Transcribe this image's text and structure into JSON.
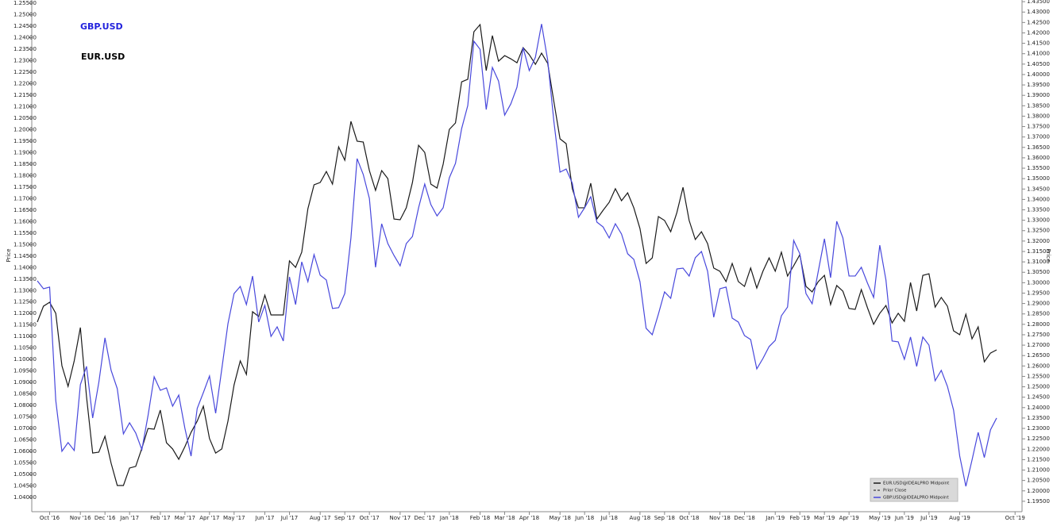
{
  "chart_data": {
    "type": "line",
    "y_label": "Price",
    "y2_label": "Price",
    "annotations": [
      {
        "text": "GBP.USD",
        "color": "#2222dd"
      },
      {
        "text": "EUR.USD",
        "color": "#000000"
      }
    ],
    "legend": {
      "position": "lower right",
      "extra_entries": [
        "Prior Close"
      ]
    },
    "grid": false,
    "categories": [
      null,
      null,
      "Oct '16",
      null,
      null,
      null,
      null,
      "Nov '16",
      null,
      null,
      null,
      "Dec '16",
      null,
      null,
      null,
      "Jan '17",
      null,
      null,
      null,
      null,
      "Feb '17",
      null,
      null,
      null,
      "Mar '17",
      null,
      null,
      null,
      "Apr '17",
      null,
      null,
      null,
      "May '17",
      null,
      null,
      null,
      null,
      "Jun '17",
      null,
      null,
      null,
      "Jul '17",
      null,
      null,
      null,
      null,
      "Aug '17",
      null,
      null,
      null,
      "Sep '17",
      null,
      null,
      null,
      "Oct '17",
      null,
      null,
      null,
      null,
      "Nov '17",
      null,
      null,
      null,
      "Dec '17",
      null,
      null,
      null,
      "Jan '18",
      null,
      null,
      null,
      null,
      "Feb '18",
      null,
      null,
      null,
      "Mar '18",
      null,
      null,
      null,
      "Apr '18",
      null,
      null,
      null,
      null,
      "May '18",
      null,
      null,
      null,
      "Jun '18",
      null,
      null,
      null,
      "Jul '18",
      null,
      null,
      null,
      null,
      "Aug '18",
      null,
      null,
      null,
      "Sep '18",
      null,
      null,
      null,
      "Oct '18",
      null,
      null,
      null,
      null,
      "Nov '18",
      null,
      null,
      null,
      "Dec '18",
      null,
      null,
      null,
      null,
      "Jan '19",
      null,
      null,
      null,
      "Feb '19",
      null,
      null,
      null,
      "Mar '19",
      null,
      null,
      null,
      "Apr '19",
      null,
      null,
      null,
      null,
      "May '19",
      null,
      null,
      null,
      "Jun '19",
      null,
      null,
      null,
      "Jul '19",
      null,
      null,
      null,
      null,
      "Aug '19",
      null,
      null,
      null,
      null,
      null,
      null,
      null,
      null,
      "Oct '19"
    ],
    "series": [
      {
        "name": "EUR.USD@IDEALPRO Midpoint",
        "color": "#1a1a1a",
        "axis": "y",
        "values": [
          1.1163,
          1.1232,
          1.1249,
          1.1201,
          1.0973,
          1.0883,
          1.0994,
          1.1139,
          1.0838,
          1.0593,
          1.0597,
          1.0666,
          1.0549,
          1.0452,
          1.0452,
          1.0528,
          1.0535,
          1.0614,
          1.07,
          1.0697,
          1.078,
          1.0638,
          1.0611,
          1.0566,
          1.0621,
          1.0683,
          1.0732,
          1.0797,
          1.0656,
          1.0593,
          1.0611,
          1.0732,
          1.089,
          1.0994,
          1.0935,
          1.1208,
          1.1187,
          1.128,
          1.1194,
          1.1194,
          1.1194,
          1.1429,
          1.1401,
          1.1467,
          1.1656,
          1.176,
          1.177,
          1.1818,
          1.1763,
          1.1925,
          1.1867,
          1.2036,
          1.195,
          1.1946,
          1.1822,
          1.1736,
          1.1822,
          1.1787,
          1.1611,
          1.1608,
          1.166,
          1.177,
          1.1932,
          1.1901,
          1.1763,
          1.1746,
          1.185,
          1.2001,
          1.2029,
          1.2208,
          1.2219,
          1.2426,
          1.2457,
          1.2257,
          1.2409,
          1.2298,
          1.2322,
          1.2308,
          1.2291,
          1.2357,
          1.2326,
          1.2284,
          1.2333,
          1.2288,
          1.2122,
          1.196,
          1.1939,
          1.1743,
          1.166,
          1.166,
          1.1767,
          1.1611,
          1.1649,
          1.1684,
          1.1743,
          1.1691,
          1.1725,
          1.166,
          1.157,
          1.1418,
          1.1442,
          1.1622,
          1.1605,
          1.1556,
          1.1639,
          1.1749,
          1.1605,
          1.1522,
          1.1556,
          1.1504,
          1.1398,
          1.1384,
          1.1339,
          1.1418,
          1.1339,
          1.1318,
          1.1398,
          1.1311,
          1.1384,
          1.1442,
          1.1384,
          1.1467,
          1.1363,
          1.1408,
          1.1456,
          1.1318,
          1.1294,
          1.1339,
          1.1366,
          1.1239,
          1.1322,
          1.1297,
          1.1222,
          1.1218,
          1.1304,
          1.1225,
          1.1153,
          1.1201,
          1.1235,
          1.1159,
          1.1201,
          1.1166,
          1.1335,
          1.1211,
          1.1366,
          1.1373,
          1.1228,
          1.127,
          1.1232,
          1.1125,
          1.1108,
          1.1197,
          1.109,
          1.1142,
          1.099,
          1.1028,
          1.1042,
          null,
          null,
          null
        ]
      },
      {
        "name": "GBP.USD@IDEALPRO Midpoint",
        "color": "#4848dc",
        "axis": "y2",
        "values": [
          1.3009,
          1.2971,
          1.2979,
          1.2434,
          1.219,
          1.2232,
          1.2194,
          1.251,
          1.2598,
          1.235,
          1.2521,
          1.2735,
          1.2579,
          1.2491,
          1.2274,
          1.2327,
          1.2278,
          1.2198,
          1.2361,
          1.2548,
          1.2483,
          1.2495,
          1.2407,
          1.246,
          1.23,
          1.2167,
          1.2396,
          1.2472,
          1.2552,
          1.2373,
          1.2586,
          1.2803,
          1.2948,
          1.2982,
          1.2895,
          1.3032,
          1.2811,
          1.2891,
          1.2742,
          1.2788,
          1.272,
          1.3028,
          1.2895,
          1.31,
          1.3005,
          1.3135,
          1.3036,
          1.3013,
          1.2876,
          1.288,
          1.2948,
          1.3215,
          1.3596,
          1.352,
          1.3405,
          1.3074,
          1.3283,
          1.3188,
          1.3131,
          1.3081,
          1.3188,
          1.3222,
          1.336,
          1.3474,
          1.3375,
          1.3321,
          1.336,
          1.3504,
          1.3573,
          1.374,
          1.3851,
          1.416,
          1.4121,
          1.3832,
          1.4034,
          1.3969,
          1.3805,
          1.3859,
          1.3939,
          1.4129,
          1.4019,
          1.4083,
          1.4243,
          1.4068,
          1.3775,
          1.3531,
          1.3546,
          1.3478,
          1.3314,
          1.336,
          1.3413,
          1.3291,
          1.3268,
          1.3215,
          1.3283,
          1.3234,
          1.3139,
          1.3112,
          1.3005,
          1.2781,
          1.275,
          1.2849,
          1.2956,
          1.2925,
          1.3066,
          1.307,
          1.3032,
          1.312,
          1.315,
          1.3055,
          1.2834,
          1.2971,
          1.2979,
          1.283,
          1.2811,
          1.2746,
          1.2727,
          1.2586,
          1.2636,
          1.2693,
          1.2723,
          1.2841,
          1.2883,
          1.3203,
          1.3139,
          1.2948,
          1.2899,
          1.3055,
          1.3211,
          1.3024,
          1.3295,
          1.3215,
          1.3032,
          1.3032,
          1.3074,
          1.2998,
          1.2929,
          1.318,
          1.3013,
          1.272,
          1.2716,
          1.2632,
          1.2739,
          1.2598,
          1.2739,
          1.27,
          1.2529,
          1.2579,
          1.2502,
          1.2388,
          1.2167,
          1.2022,
          1.2148,
          1.2281,
          1.216,
          1.2293,
          1.235,
          null,
          null,
          null
        ]
      }
    ],
    "ylim": [
      1.0338,
      1.2564
    ],
    "yticks": [
      {
        "value": 1.04,
        "label": "1.04000"
      },
      {
        "value": 1.045,
        "label": "1.04500"
      },
      {
        "value": 1.05,
        "label": "1.05000"
      },
      {
        "value": 1.055,
        "label": "1.05500"
      },
      {
        "value": 1.06,
        "label": "1.06000"
      },
      {
        "value": 1.065,
        "label": "1.06500"
      },
      {
        "value": 1.07,
        "label": "1.07000"
      },
      {
        "value": 1.075,
        "label": "1.07500"
      },
      {
        "value": 1.08,
        "label": "1.08000"
      },
      {
        "value": 1.085,
        "label": "1.08500"
      },
      {
        "value": 1.09,
        "label": "1.09000"
      },
      {
        "value": 1.095,
        "label": "1.09500"
      },
      {
        "value": 1.1,
        "label": "1.10000"
      },
      {
        "value": 1.105,
        "label": "1.10500"
      },
      {
        "value": 1.11,
        "label": "1.11000"
      },
      {
        "value": 1.115,
        "label": "1.11500"
      },
      {
        "value": 1.12,
        "label": "1.12000"
      },
      {
        "value": 1.125,
        "label": "1.12500"
      },
      {
        "value": 1.13,
        "label": "1.13000"
      },
      {
        "value": 1.135,
        "label": "1.13500"
      },
      {
        "value": 1.14,
        "label": "1.14000"
      },
      {
        "value": 1.145,
        "label": "1.14500"
      },
      {
        "value": 1.15,
        "label": "1.15000"
      },
      {
        "value": 1.155,
        "label": "1.15500"
      },
      {
        "value": 1.16,
        "label": "1.16000"
      },
      {
        "value": 1.165,
        "label": "1.16500"
      },
      {
        "value": 1.17,
        "label": "1.17000"
      },
      {
        "value": 1.175,
        "label": "1.17500"
      },
      {
        "value": 1.18,
        "label": "1.18000"
      },
      {
        "value": 1.185,
        "label": "1.18500"
      },
      {
        "value": 1.19,
        "label": "1.19000"
      },
      {
        "value": 1.195,
        "label": "1.19500"
      },
      {
        "value": 1.2,
        "label": "1.20000"
      },
      {
        "value": 1.205,
        "label": "1.20500"
      },
      {
        "value": 1.21,
        "label": "1.21000"
      },
      {
        "value": 1.215,
        "label": "1.21500"
      },
      {
        "value": 1.22,
        "label": "1.22000"
      },
      {
        "value": 1.225,
        "label": "1.22500"
      },
      {
        "value": 1.23,
        "label": "1.23000"
      },
      {
        "value": 1.235,
        "label": "1.23500"
      },
      {
        "value": 1.24,
        "label": "1.24000"
      },
      {
        "value": 1.245,
        "label": "1.24500"
      },
      {
        "value": 1.25,
        "label": "1.25000"
      },
      {
        "value": 1.255,
        "label": "1.25500"
      }
    ],
    "y2lim": [
      1.19,
      1.4358
    ],
    "y2ticks": [
      {
        "value": 1.195,
        "label": "1.19500"
      },
      {
        "value": 1.2,
        "label": "1.20000"
      },
      {
        "value": 1.205,
        "label": "1.20500"
      },
      {
        "value": 1.21,
        "label": "1.21000"
      },
      {
        "value": 1.215,
        "label": "1.21500"
      },
      {
        "value": 1.22,
        "label": "1.22000"
      },
      {
        "value": 1.225,
        "label": "1.22500"
      },
      {
        "value": 1.23,
        "label": "1.23000"
      },
      {
        "value": 1.235,
        "label": "1.23500"
      },
      {
        "value": 1.24,
        "label": "1.24000"
      },
      {
        "value": 1.245,
        "label": "1.24500"
      },
      {
        "value": 1.25,
        "label": "1.25000"
      },
      {
        "value": 1.255,
        "label": "1.25500"
      },
      {
        "value": 1.26,
        "label": "1.26000"
      },
      {
        "value": 1.265,
        "label": "1.26500"
      },
      {
        "value": 1.27,
        "label": "1.27000"
      },
      {
        "value": 1.275,
        "label": "1.27500"
      },
      {
        "value": 1.28,
        "label": "1.28000"
      },
      {
        "value": 1.285,
        "label": "1.28500"
      },
      {
        "value": 1.29,
        "label": "1.29000"
      },
      {
        "value": 1.295,
        "label": "1.29500"
      },
      {
        "value": 1.3,
        "label": "1.30000"
      },
      {
        "value": 1.305,
        "label": "1.30500"
      },
      {
        "value": 1.31,
        "label": "1.31000"
      },
      {
        "value": 1.315,
        "label": "1.31500"
      },
      {
        "value": 1.32,
        "label": "1.32000"
      },
      {
        "value": 1.325,
        "label": "1.32500"
      },
      {
        "value": 1.33,
        "label": "1.33000"
      },
      {
        "value": 1.335,
        "label": "1.33500"
      },
      {
        "value": 1.34,
        "label": "1.34000"
      },
      {
        "value": 1.345,
        "label": "1.34500"
      },
      {
        "value": 1.35,
        "label": "1.35000"
      },
      {
        "value": 1.355,
        "label": "1.35500"
      },
      {
        "value": 1.36,
        "label": "1.36000"
      },
      {
        "value": 1.365,
        "label": "1.36500"
      },
      {
        "value": 1.37,
        "label": "1.37000"
      },
      {
        "value": 1.375,
        "label": "1.37500"
      },
      {
        "value": 1.38,
        "label": "1.38000"
      },
      {
        "value": 1.385,
        "label": "1.38500"
      },
      {
        "value": 1.39,
        "label": "1.39000"
      },
      {
        "value": 1.395,
        "label": "1.39500"
      },
      {
        "value": 1.4,
        "label": "1.40000"
      },
      {
        "value": 1.405,
        "label": "1.40500"
      },
      {
        "value": 1.41,
        "label": "1.41000"
      },
      {
        "value": 1.415,
        "label": "1.41500"
      },
      {
        "value": 1.42,
        "label": "1.42000"
      },
      {
        "value": 1.425,
        "label": "1.42500"
      },
      {
        "value": 1.43,
        "label": "1.43000"
      },
      {
        "value": 1.435,
        "label": "1.43500"
      }
    ]
  }
}
